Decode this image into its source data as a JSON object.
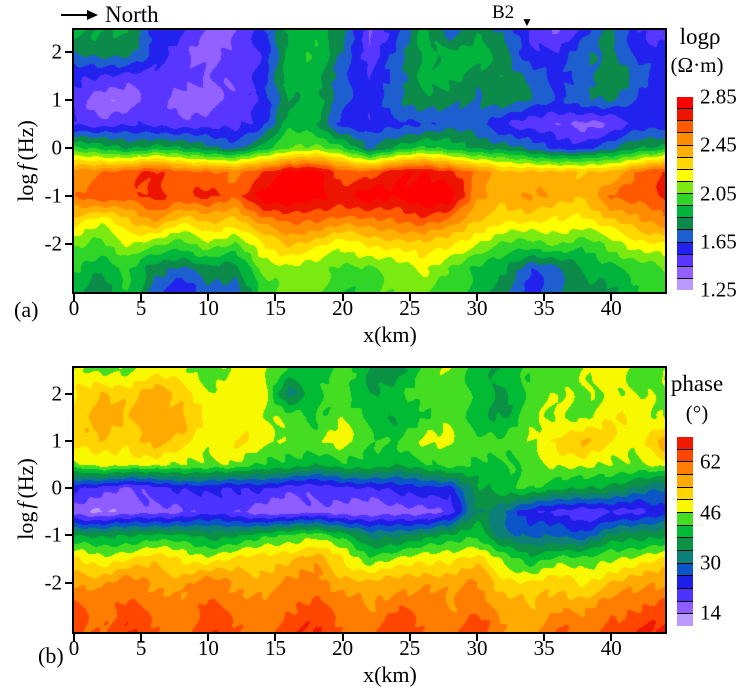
{
  "figure": {
    "north_label": "North",
    "station_label": "B2",
    "station_marker": "▼",
    "panel_a_tag": "(a)",
    "panel_b_tag": "(b)"
  },
  "axes": {
    "x_label": "x(km)",
    "y_label_log": "log",
    "y_label_f": "f",
    "y_label_units": "(Hz)",
    "x_ticks": [
      0,
      5,
      10,
      15,
      20,
      25,
      30,
      35,
      40
    ],
    "y_ticks": [
      2,
      1,
      0,
      -1,
      -2
    ]
  },
  "colorbar_a": {
    "title": "logρ",
    "units": "(Ω·m)",
    "tick_labels": [
      "2.85",
      "2.45",
      "2.05",
      "1.65",
      "1.25"
    ],
    "palette_low_to_high": [
      "#bb99ff",
      "#9361ff",
      "#5936ff",
      "#2222ee",
      "#1e5fcf",
      "#0b8a4a",
      "#00b43c",
      "#2fd527",
      "#7bea11",
      "#ffff00",
      "#ffd800",
      "#ffb000",
      "#ff8c00",
      "#ff5a00",
      "#ee1500",
      "#ff0000"
    ]
  },
  "colorbar_b": {
    "title": "phase",
    "units": "(°)",
    "tick_labels": [
      "62",
      "46",
      "30",
      "14"
    ],
    "palette_low_to_high": [
      "#bb99ff",
      "#8f5cff",
      "#4d33ff",
      "#1e1ee6",
      "#0b55c8",
      "#0c8078",
      "#0a9143",
      "#00bb33",
      "#44dd22",
      "#f8f800",
      "#ffd400",
      "#ffaa00",
      "#ff7d00",
      "#ff4600",
      "#f01800"
    ]
  },
  "chart_data": [
    {
      "type": "heatmap",
      "panel": "a",
      "quantity": "logρ (Ω·m)",
      "xlabel": "x(km)",
      "ylabel": "log f (Hz)",
      "x_range": [
        0,
        44
      ],
      "y_range": [
        2.46,
        -3.0
      ],
      "value_range": [
        1.25,
        2.85
      ],
      "contour_interval": 0.1,
      "colorbar_ticks": [
        2.85,
        2.45,
        2.05,
        1.65,
        1.25
      ],
      "x_axis_ticks": [
        0,
        5,
        10,
        15,
        20,
        25,
        30,
        35,
        40
      ],
      "y_axis_ticks": [
        2,
        1,
        0,
        -1,
        -2
      ],
      "station_b2_x_km": 34,
      "x_km": [
        0,
        2,
        4,
        6,
        8,
        10,
        12,
        14,
        16,
        18,
        20,
        22,
        24,
        26,
        28,
        30,
        32,
        34,
        36,
        38,
        40,
        42,
        44
      ],
      "log_f": [
        2.5,
        2,
        1.5,
        1,
        0.5,
        0,
        -0.5,
        -1,
        -1.5,
        -2,
        -2.5,
        -3
      ],
      "values": [
        [
          1.88,
          1.82,
          1.9,
          1.62,
          1.55,
          1.44,
          1.46,
          1.6,
          1.88,
          1.94,
          1.78,
          1.44,
          1.62,
          1.9,
          1.62,
          1.86,
          1.72,
          1.5,
          1.44,
          1.6,
          1.76,
          1.56,
          1.5
        ],
        [
          1.74,
          1.84,
          1.8,
          1.6,
          1.5,
          1.4,
          1.46,
          1.56,
          1.9,
          1.94,
          1.74,
          1.5,
          1.66,
          1.86,
          1.9,
          1.9,
          1.76,
          1.6,
          1.56,
          1.7,
          1.8,
          1.6,
          1.56
        ],
        [
          1.6,
          1.54,
          1.5,
          1.54,
          1.48,
          1.44,
          1.5,
          1.6,
          1.9,
          1.9,
          1.7,
          1.54,
          1.7,
          1.9,
          1.86,
          1.8,
          1.86,
          1.7,
          1.6,
          1.74,
          1.86,
          1.7,
          1.6
        ],
        [
          1.5,
          1.36,
          1.4,
          1.48,
          1.38,
          1.42,
          1.46,
          1.56,
          1.86,
          1.9,
          1.66,
          1.6,
          1.74,
          1.8,
          1.8,
          1.76,
          1.8,
          1.74,
          1.66,
          1.7,
          1.76,
          1.66,
          1.56
        ],
        [
          1.56,
          1.5,
          1.52,
          1.54,
          1.5,
          1.48,
          1.52,
          1.62,
          1.9,
          1.86,
          1.62,
          1.56,
          1.6,
          1.66,
          1.7,
          1.66,
          1.56,
          1.5,
          1.44,
          1.42,
          1.46,
          1.56,
          1.6
        ],
        [
          1.96,
          1.9,
          1.86,
          1.9,
          1.84,
          1.8,
          1.72,
          1.86,
          2.06,
          2.1,
          1.96,
          1.72,
          1.9,
          1.96,
          1.9,
          1.86,
          1.8,
          1.7,
          1.64,
          1.6,
          1.7,
          1.86,
          1.9
        ],
        [
          2.5,
          2.56,
          2.6,
          2.66,
          2.6,
          2.56,
          2.5,
          2.66,
          2.8,
          2.78,
          2.6,
          2.6,
          2.7,
          2.76,
          2.7,
          2.5,
          2.36,
          2.4,
          2.36,
          2.34,
          2.4,
          2.56,
          2.66
        ],
        [
          2.55,
          2.62,
          2.6,
          2.72,
          2.6,
          2.68,
          2.6,
          2.8,
          2.85,
          2.82,
          2.72,
          2.8,
          2.78,
          2.85,
          2.8,
          2.5,
          2.4,
          2.45,
          2.42,
          2.38,
          2.55,
          2.6,
          2.7
        ],
        [
          2.3,
          2.2,
          2.35,
          2.45,
          2.3,
          2.4,
          2.3,
          2.5,
          2.6,
          2.55,
          2.5,
          2.56,
          2.55,
          2.6,
          2.55,
          2.35,
          2.25,
          2.3,
          2.25,
          2.2,
          2.35,
          2.45,
          2.5
        ],
        [
          2.1,
          2.0,
          2.15,
          2.1,
          2.0,
          2.1,
          2.05,
          2.25,
          2.35,
          2.3,
          2.2,
          2.25,
          2.3,
          2.35,
          2.25,
          2.15,
          2.05,
          2.0,
          2.05,
          2.0,
          2.1,
          2.2,
          2.25
        ],
        [
          1.95,
          1.85,
          2.0,
          1.78,
          1.72,
          1.85,
          1.8,
          2.05,
          2.15,
          2.1,
          2.0,
          2.05,
          2.1,
          2.16,
          2.05,
          1.95,
          1.85,
          1.66,
          1.75,
          1.85,
          1.9,
          2.0,
          2.05
        ],
        [
          1.9,
          1.8,
          1.95,
          1.7,
          1.56,
          1.7,
          1.66,
          2.0,
          2.1,
          2.05,
          1.95,
          2.0,
          2.05,
          2.1,
          2.0,
          1.9,
          1.8,
          1.6,
          1.7,
          1.8,
          1.85,
          1.95,
          2.0
        ]
      ]
    },
    {
      "type": "heatmap",
      "panel": "b",
      "quantity": "phase (°)",
      "xlabel": "x(km)",
      "ylabel": "log f (Hz)",
      "x_range": [
        0,
        44
      ],
      "y_range": [
        2.55,
        -3.05
      ],
      "value_range": [
        10,
        70
      ],
      "contour_interval": 4,
      "colorbar_ticks": [
        62,
        46,
        30,
        14
      ],
      "x_axis_ticks": [
        0,
        5,
        10,
        15,
        20,
        25,
        30,
        35,
        40
      ],
      "y_axis_ticks": [
        2,
        1,
        0,
        -1,
        -2
      ],
      "x_km": [
        0,
        2,
        4,
        6,
        8,
        10,
        12,
        14,
        16,
        18,
        20,
        22,
        24,
        26,
        28,
        30,
        32,
        34,
        36,
        38,
        40,
        42,
        44
      ],
      "log_f": [
        2.5,
        2,
        1.5,
        1,
        0.5,
        0,
        -0.5,
        -1,
        -1.5,
        -2,
        -2.5,
        -3
      ],
      "values": [
        [
          46,
          44,
          46,
          48,
          46,
          44,
          48,
          46,
          42,
          40,
          44,
          38,
          36,
          42,
          46,
          40,
          38,
          42,
          44,
          46,
          48,
          44,
          46
        ],
        [
          50,
          55,
          52,
          56,
          54,
          46,
          48,
          50,
          32,
          40,
          44,
          38,
          40,
          44,
          46,
          40,
          36,
          44,
          46,
          44,
          48,
          46,
          44
        ],
        [
          52,
          56,
          54,
          57,
          55,
          48,
          50,
          46,
          44,
          42,
          46,
          40,
          38,
          42,
          44,
          40,
          38,
          44,
          46,
          46,
          50,
          48,
          46
        ],
        [
          50,
          54,
          52,
          55,
          53,
          48,
          50,
          48,
          46,
          44,
          48,
          44,
          42,
          46,
          48,
          44,
          42,
          46,
          52,
          54,
          50,
          48,
          57
        ],
        [
          46,
          48,
          46,
          48,
          46,
          44,
          46,
          42,
          40,
          38,
          42,
          40,
          38,
          42,
          44,
          40,
          42,
          44,
          46,
          48,
          46,
          44,
          48
        ],
        [
          22,
          20,
          18,
          20,
          22,
          24,
          22,
          22,
          20,
          20,
          20,
          22,
          24,
          24,
          24,
          38,
          40,
          42,
          40,
          38,
          36,
          34,
          30
        ],
        [
          16,
          14,
          15,
          16,
          18,
          20,
          18,
          16,
          15,
          16,
          16,
          15,
          15,
          16,
          20,
          34,
          30,
          24,
          20,
          18,
          22,
          20,
          24
        ],
        [
          38,
          36,
          38,
          40,
          38,
          36,
          38,
          40,
          42,
          46,
          40,
          32,
          34,
          36,
          38,
          42,
          32,
          28,
          30,
          28,
          34,
          36,
          38
        ],
        [
          50,
          48,
          50,
          52,
          50,
          48,
          50,
          52,
          54,
          56,
          50,
          44,
          46,
          48,
          50,
          52,
          44,
          40,
          44,
          42,
          46,
          48,
          50
        ],
        [
          58,
          56,
          60,
          58,
          56,
          60,
          58,
          56,
          58,
          60,
          56,
          54,
          56,
          58,
          56,
          58,
          52,
          50,
          52,
          50,
          54,
          56,
          58
        ],
        [
          62,
          60,
          64,
          60,
          58,
          64,
          60,
          58,
          62,
          64,
          60,
          58,
          62,
          60,
          58,
          62,
          56,
          54,
          58,
          56,
          60,
          62,
          64
        ],
        [
          64,
          62,
          66,
          62,
          60,
          66,
          62,
          60,
          64,
          66,
          62,
          60,
          65,
          62,
          60,
          64,
          58,
          56,
          62,
          60,
          64,
          66,
          66
        ]
      ]
    }
  ]
}
